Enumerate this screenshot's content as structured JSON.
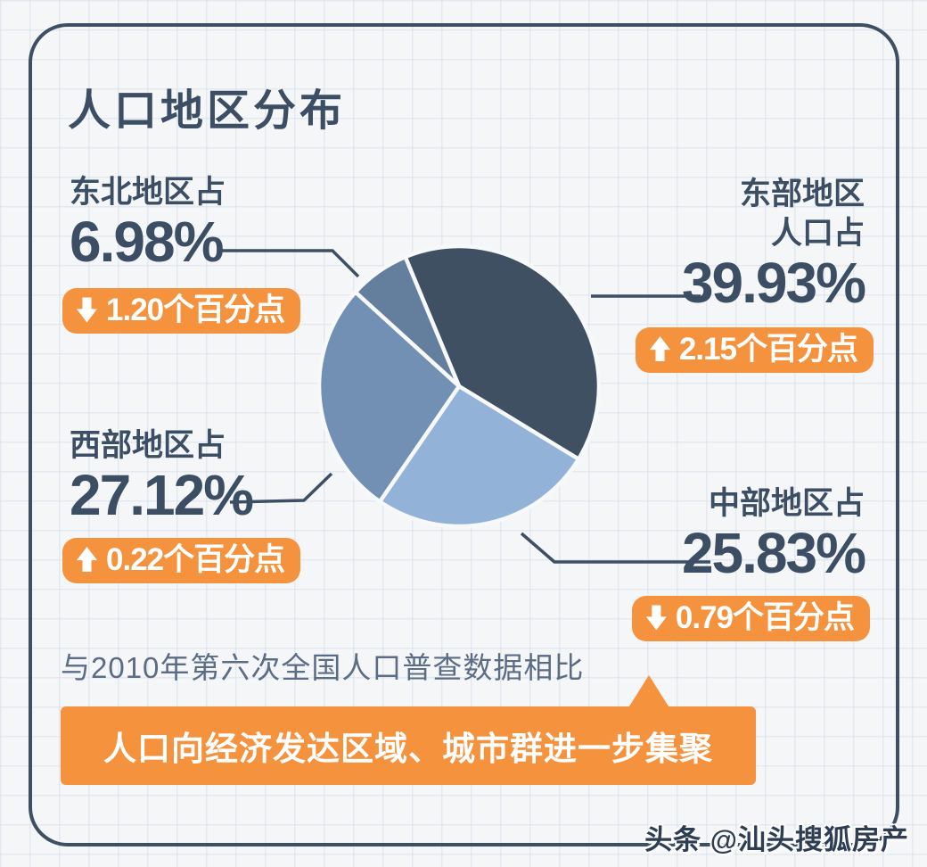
{
  "chart_data": {
    "type": "pie",
    "title": "人口地区分布",
    "slice_order": "clockwise-from-top",
    "start_angle_clockwise_from_top_deg": -22.6,
    "slices": [
      {
        "name": "east",
        "label": "东部地区人口占",
        "value_pct": 39.93,
        "change_pct_points": 2.15,
        "change_direction": "up",
        "color": "#3f5063"
      },
      {
        "name": "central",
        "label": "中部地区占",
        "value_pct": 25.83,
        "change_pct_points": 0.79,
        "change_direction": "down",
        "color": "#92b2d8"
      },
      {
        "name": "west",
        "label": "西部地区占",
        "value_pct": 27.12,
        "change_pct_points": 0.22,
        "change_direction": "up",
        "color": "#7290b3"
      },
      {
        "name": "northeast",
        "label": "东北地区占",
        "value_pct": 6.98,
        "change_pct_points": 1.2,
        "change_direction": "down",
        "color": "#647f9e"
      }
    ],
    "unit": "%",
    "comparison_note": "与2010年第六次全国人口普查数据相比",
    "legend_position": "none"
  },
  "callouts": {
    "northeast": {
      "region": "东北地区占",
      "value": "6.98%",
      "badge": "1.20个百分点"
    },
    "east": {
      "region_line1": "东部地区",
      "region_line2": "人口占",
      "value": "39.93%",
      "badge": "2.15个百分点"
    },
    "west": {
      "region": "西部地区占",
      "value": "27.12%",
      "badge": "0.22个百分点"
    },
    "central": {
      "region": "中部地区占",
      "value": "25.83%",
      "badge": "0.79个百分点"
    }
  },
  "banner": "人口向经济发达区域、城市群进一步集聚",
  "watermark": "头条 @汕头搜狐房产",
  "colors": {
    "ink": "#3d4f63",
    "accent_orange": "#f5923e",
    "gap": "#f7f8fa"
  }
}
